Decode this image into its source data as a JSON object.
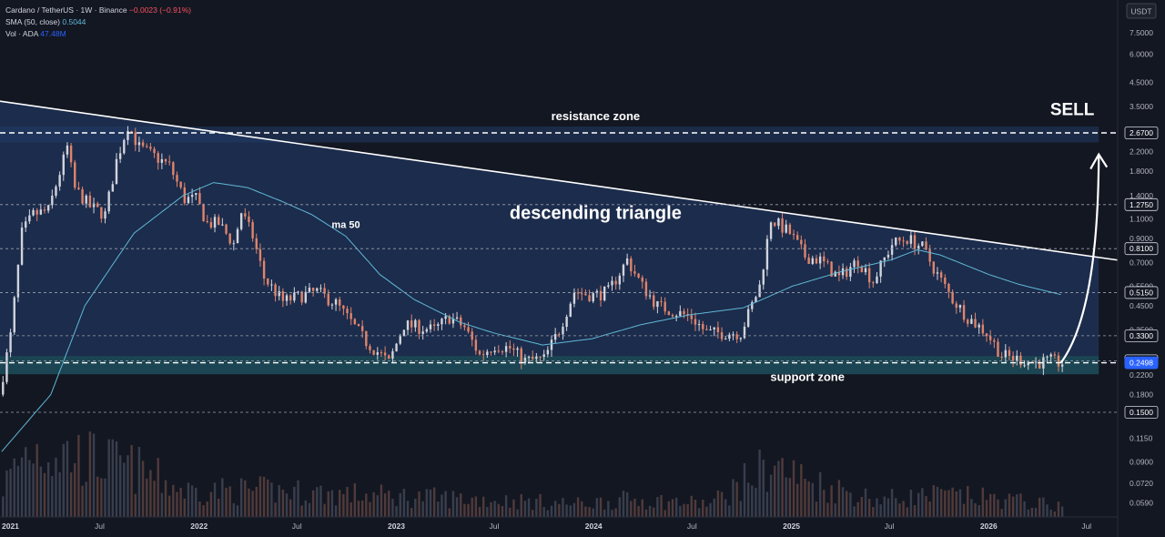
{
  "legend": {
    "symbol": "Cardano / TetherUS · 1W · Binance",
    "change": "−0.0023 (−0.91%)",
    "sma_label": "SMA (50, close)",
    "sma_value": "0.5044",
    "vol_label": "Vol · ADA",
    "vol_value": "47.48M"
  },
  "currency_button": "USDT",
  "colors": {
    "background": "#131722",
    "up": "#d1d4dc",
    "down": "#e0846b",
    "sma": "#5fb8d6",
    "triangle_fill": "#1c2d4f",
    "support_fill": "#1f4e5c",
    "sell": "#e0212b",
    "label_box": "#131722",
    "current_price": "#2962ff"
  },
  "chart_data": {
    "type": "candlestick",
    "title": "",
    "y_scale": "log",
    "ylim": [
      0.051,
      10.5
    ],
    "x_range": [
      "2021-01-01",
      "2026-08-31"
    ],
    "y_ticks": [
      7.5,
      6.0,
      4.5,
      3.5,
      2.2,
      1.8,
      1.4,
      1.1,
      0.9,
      0.7,
      0.55,
      0.45,
      0.35,
      0.22,
      0.18,
      0.115,
      0.09,
      0.072,
      0.059
    ],
    "y_tick_labels": [
      "7.5000",
      "6.0000",
      "4.5000",
      "3.5000",
      "2.2000",
      "1.8000",
      "1.4000",
      "1.1000",
      "0.9000",
      "0.7000",
      "0.5500",
      "0.4500",
      "0.3500",
      "0.2200",
      "0.1800",
      "0.1150",
      "0.0900",
      "0.0720",
      "0.0590"
    ],
    "x_ticks": [
      {
        "date": "2021-01-01",
        "label": "2021",
        "year": true
      },
      {
        "date": "2021-07-01",
        "label": "Jul",
        "year": false
      },
      {
        "date": "2022-01-01",
        "label": "2022",
        "year": true
      },
      {
        "date": "2022-07-01",
        "label": "Jul",
        "year": false
      },
      {
        "date": "2023-01-01",
        "label": "2023",
        "year": true
      },
      {
        "date": "2023-07-01",
        "label": "Jul",
        "year": false
      },
      {
        "date": "2024-01-01",
        "label": "2024",
        "year": true
      },
      {
        "date": "2024-07-01",
        "label": "Jul",
        "year": false
      },
      {
        "date": "2025-01-01",
        "label": "2025",
        "year": true
      },
      {
        "date": "2025-07-01",
        "label": "Jul",
        "year": false
      },
      {
        "date": "2026-01-01",
        "label": "2026",
        "year": true
      },
      {
        "date": "2026-07-01",
        "label": "Jul",
        "year": false
      }
    ],
    "price_path": [
      [
        "2021-01-04",
        0.18
      ],
      [
        "2021-01-25",
        0.33
      ],
      [
        "2021-02-15",
        0.95
      ],
      [
        "2021-03-08",
        1.15
      ],
      [
        "2021-04-05",
        1.2
      ],
      [
        "2021-05-10",
        2.3
      ],
      [
        "2021-05-24",
        1.5
      ],
      [
        "2021-06-21",
        1.25
      ],
      [
        "2021-07-19",
        1.15
      ],
      [
        "2021-08-09",
        2.0
      ],
      [
        "2021-08-30",
        2.9
      ],
      [
        "2021-09-20",
        2.3
      ],
      [
        "2021-10-18",
        2.1
      ],
      [
        "2021-11-15",
        1.9
      ],
      [
        "2021-12-13",
        1.35
      ],
      [
        "2022-01-03",
        1.35
      ],
      [
        "2022-01-24",
        1.05
      ],
      [
        "2022-02-14",
        1.05
      ],
      [
        "2022-03-14",
        0.85
      ],
      [
        "2022-03-28",
        1.18
      ],
      [
        "2022-04-18",
        0.92
      ],
      [
        "2022-05-09",
        0.6
      ],
      [
        "2022-06-13",
        0.47
      ],
      [
        "2022-07-18",
        0.5
      ],
      [
        "2022-08-15",
        0.52
      ],
      [
        "2022-09-19",
        0.46
      ],
      [
        "2022-10-17",
        0.38
      ],
      [
        "2022-11-14",
        0.31
      ],
      [
        "2022-12-12",
        0.27
      ],
      [
        "2022-12-26",
        0.25
      ],
      [
        "2023-01-23",
        0.37
      ],
      [
        "2023-02-20",
        0.36
      ],
      [
        "2023-03-20",
        0.35
      ],
      [
        "2023-04-17",
        0.4
      ],
      [
        "2023-05-15",
        0.36
      ],
      [
        "2023-06-12",
        0.27
      ],
      [
        "2023-07-10",
        0.3
      ],
      [
        "2023-08-07",
        0.29
      ],
      [
        "2023-09-04",
        0.255
      ],
      [
        "2023-10-09",
        0.26
      ],
      [
        "2023-11-06",
        0.35
      ],
      [
        "2023-12-04",
        0.52
      ],
      [
        "2024-01-08",
        0.5
      ],
      [
        "2024-02-05",
        0.52
      ],
      [
        "2024-03-11",
        0.72
      ],
      [
        "2024-04-08",
        0.55
      ],
      [
        "2024-05-06",
        0.45
      ],
      [
        "2024-06-10",
        0.42
      ],
      [
        "2024-07-08",
        0.4
      ],
      [
        "2024-08-05",
        0.34
      ],
      [
        "2024-09-02",
        0.34
      ],
      [
        "2024-10-07",
        0.34
      ],
      [
        "2024-11-11",
        0.55
      ],
      [
        "2024-12-02",
        1.1
      ],
      [
        "2025-01-06",
        0.95
      ],
      [
        "2025-02-03",
        0.75
      ],
      [
        "2025-03-03",
        0.72
      ],
      [
        "2025-04-07",
        0.6
      ],
      [
        "2025-05-12",
        0.72
      ],
      [
        "2025-06-09",
        0.58
      ],
      [
        "2025-07-14",
        0.85
      ],
      [
        "2025-08-11",
        0.9
      ],
      [
        "2025-09-08",
        0.82
      ],
      [
        "2025-10-06",
        0.62
      ],
      [
        "2025-11-03",
        0.48
      ],
      [
        "2025-12-01",
        0.4
      ],
      [
        "2026-01-05",
        0.34
      ],
      [
        "2026-02-02",
        0.27
      ],
      [
        "2026-03-02",
        0.26
      ],
      [
        "2026-04-06",
        0.25
      ],
      [
        "2026-05-04",
        0.255
      ],
      [
        "2026-05-18",
        0.2498
      ]
    ],
    "sma50_path": [
      [
        "2021-01-04",
        0.1
      ],
      [
        "2021-04-05",
        0.18
      ],
      [
        "2021-06-07",
        0.45
      ],
      [
        "2021-09-06",
        0.95
      ],
      [
        "2021-12-06",
        1.4
      ],
      [
        "2022-01-31",
        1.6
      ],
      [
        "2022-04-04",
        1.52
      ],
      [
        "2022-06-06",
        1.32
      ],
      [
        "2022-08-01",
        1.15
      ],
      [
        "2022-10-03",
        0.92
      ],
      [
        "2022-12-05",
        0.62
      ],
      [
        "2023-02-06",
        0.48
      ],
      [
        "2023-05-01",
        0.38
      ],
      [
        "2023-07-03",
        0.34
      ],
      [
        "2023-10-02",
        0.3
      ],
      [
        "2024-01-01",
        0.32
      ],
      [
        "2024-04-01",
        0.37
      ],
      [
        "2024-07-01",
        0.41
      ],
      [
        "2024-10-07",
        0.44
      ],
      [
        "2025-01-06",
        0.55
      ],
      [
        "2025-04-07",
        0.64
      ],
      [
        "2025-07-07",
        0.72
      ],
      [
        "2025-08-25",
        0.8
      ],
      [
        "2025-10-06",
        0.76
      ],
      [
        "2026-01-05",
        0.62
      ],
      [
        "2026-03-02",
        0.56
      ],
      [
        "2026-05-18",
        0.5044
      ]
    ],
    "volume_profile": [
      [
        "2021-01-04",
        0.35
      ],
      [
        "2021-02-22",
        0.8
      ],
      [
        "2021-05-17",
        0.7
      ],
      [
        "2021-09-06",
        0.55
      ],
      [
        "2021-12-06",
        0.3
      ],
      [
        "2022-05-09",
        0.3
      ],
      [
        "2022-11-07",
        0.25
      ],
      [
        "2023-06-12",
        0.2
      ],
      [
        "2023-12-04",
        0.15
      ],
      [
        "2024-03-11",
        0.2
      ],
      [
        "2024-08-05",
        0.15
      ],
      [
        "2024-11-25",
        0.6
      ],
      [
        "2025-02-03",
        0.4
      ],
      [
        "2025-06-09",
        0.2
      ],
      [
        "2025-10-06",
        0.25
      ],
      [
        "2026-02-02",
        0.2
      ],
      [
        "2026-05-18",
        0.12
      ]
    ],
    "price_lines": [
      {
        "value": 2.67,
        "label": "2.6700",
        "dashed": true
      },
      {
        "value": 1.275,
        "label": "1.2750",
        "dashed": true
      },
      {
        "value": 0.81,
        "label": "0.8100",
        "dashed": true
      },
      {
        "value": 0.515,
        "label": "0.5150",
        "dashed": true
      },
      {
        "value": 0.33,
        "label": "0.3300",
        "dashed": true
      },
      {
        "value": 0.255,
        "label": "0.2550",
        "dashed": true
      },
      {
        "value": 0.2498,
        "label": "0.2498",
        "dashed": true,
        "current": true
      },
      {
        "value": 0.15,
        "label": "0.1500",
        "dashed": true
      }
    ],
    "zones": {
      "resistance": {
        "low": 2.42,
        "high": 2.85
      },
      "support": {
        "low": 0.222,
        "high": 0.268
      }
    },
    "triangle": {
      "upper": [
        [
          "2021-01-01",
          3.7
        ],
        [
          "2026-08-31",
          0.72
        ]
      ],
      "lower_value": 0.268,
      "end": "2026-07-27"
    },
    "projection": [
      [
        "2026-05-18",
        0.2498
      ],
      [
        "2026-06-22",
        0.42
      ],
      [
        "2026-07-27",
        2.1
      ]
    ],
    "annotations": {
      "resistance_zone": "resistance zone",
      "support_zone": "support zone",
      "descending_triangle": "descending triangle",
      "ma_50": "ma 50",
      "sell": "SELL"
    },
    "annotation_positions": {
      "resistance_zone": [
        "2024-01-08",
        3.05
      ],
      "support_zone": [
        "2025-02-03",
        0.207
      ],
      "descending_triangle": [
        "2024-01-08",
        1.1
      ],
      "ma_50": [
        "2022-10-03",
        1.0
      ],
      "sell": [
        "2026-06-08",
        3.2
      ]
    }
  }
}
